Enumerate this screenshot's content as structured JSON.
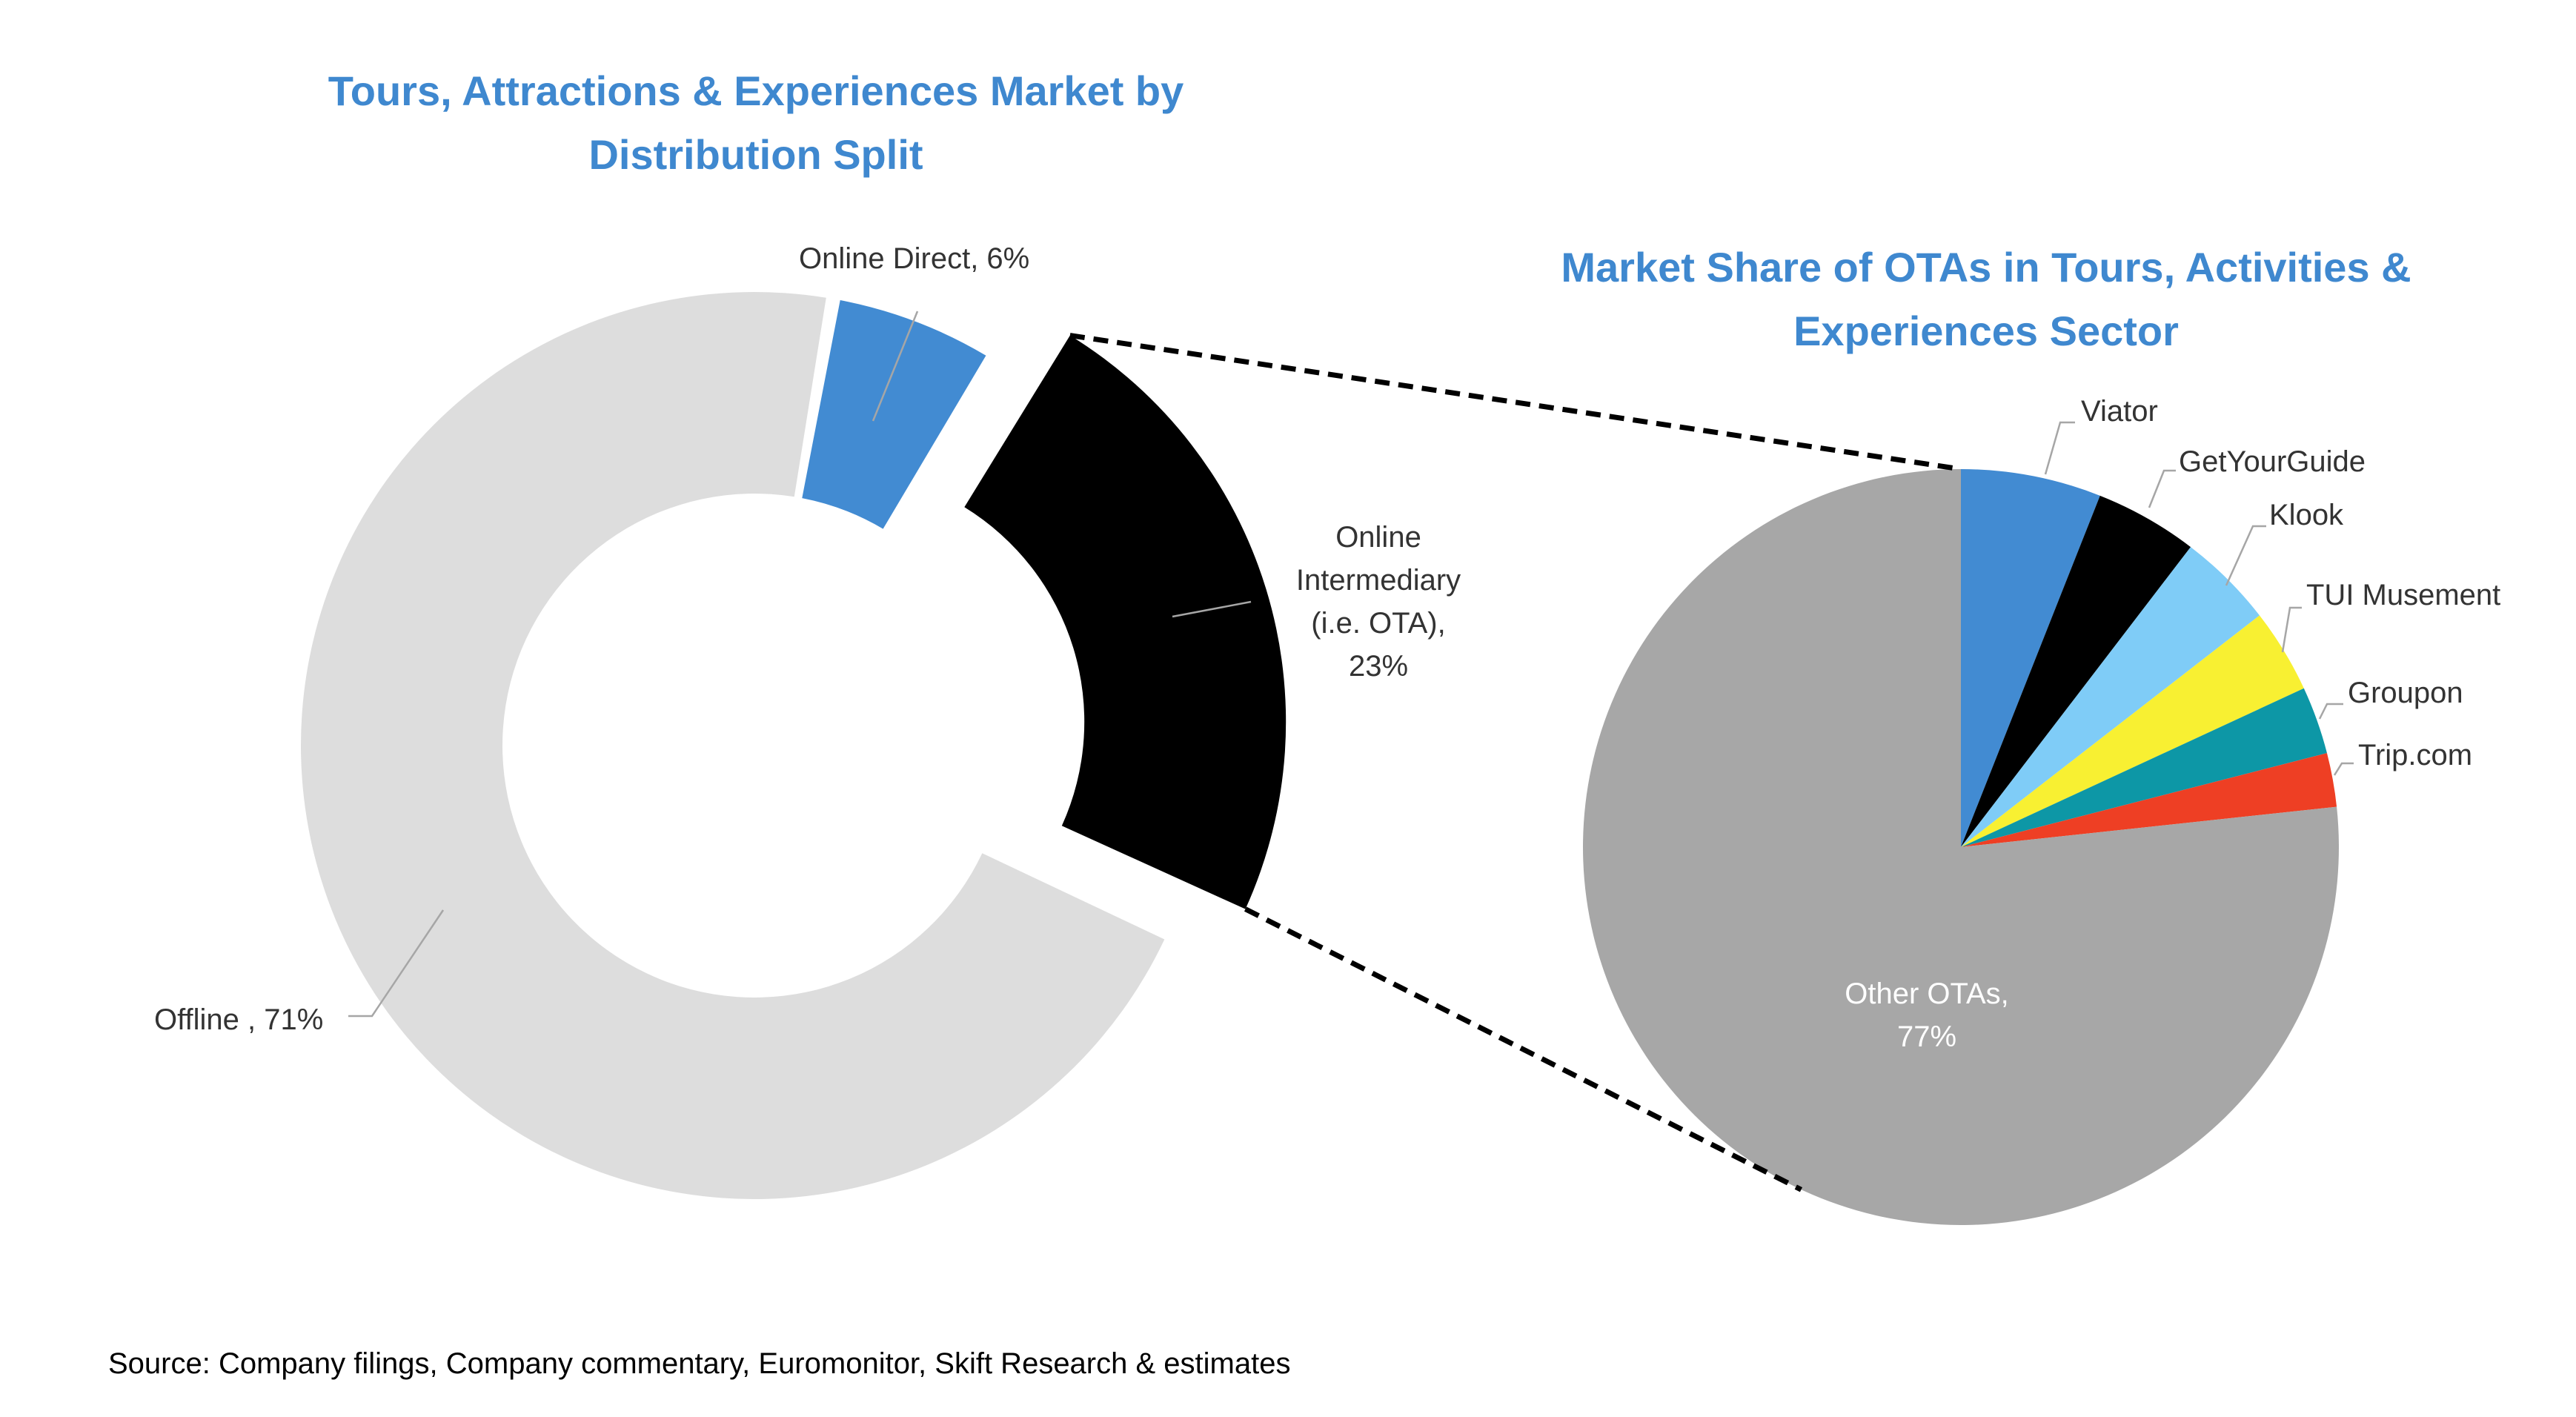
{
  "source": "Source: Company filings, Company commentary, Euromonitor, Skift Research & estimates",
  "chart_data": [
    {
      "type": "pie",
      "style": "donut",
      "title": "Tours, Attractions & Experiences Market by Distribution Split",
      "title_lines": [
        "Tours, Attractions & Experiences Market by",
        "Distribution Split"
      ],
      "slices": [
        {
          "name": "Online Direct",
          "value": 6,
          "color": "#428BD2",
          "label_lines": [
            "Online Direct, 6%"
          ]
        },
        {
          "name": "Online Intermediary (i.e. OTA)",
          "value": 23,
          "color": "#000000",
          "exploded": true,
          "label_lines": [
            "Online",
            "Intermediary",
            "(i.e. OTA),",
            "23%"
          ]
        },
        {
          "name": "Offline ",
          "value": 71,
          "color": "#DDDDDD",
          "label_lines": [
            "Offline , 71%"
          ]
        }
      ]
    },
    {
      "type": "pie",
      "title": "Market Share of OTAs in Tours, Activities & Experiences Sector",
      "title_lines": [
        "Market Share of OTAs in Tours, Activities &",
        "Experiences Sector"
      ],
      "slices": [
        {
          "name": "Viator",
          "value": 6.0,
          "color": "#428BD2",
          "label_lines": [
            "Viator"
          ]
        },
        {
          "name": "GetYourGuide",
          "value": 4.4,
          "color": "#000000",
          "label_lines": [
            "GetYourGuide"
          ]
        },
        {
          "name": "Klook",
          "value": 4.1,
          "color": "#7FCCF7",
          "label_lines": [
            "Klook"
          ]
        },
        {
          "name": "TUI Musement",
          "value": 3.6,
          "color": "#F8F032",
          "label_lines": [
            "TUI Musement"
          ]
        },
        {
          "name": "Groupon",
          "value": 2.9,
          "color": "#0D97A6",
          "label_lines": [
            "Groupon"
          ]
        },
        {
          "name": "Trip.com",
          "value": 2.3,
          "color": "#EE3F24",
          "label_lines": [
            "Trip.com"
          ]
        },
        {
          "name": "Other OTAs",
          "value": 76.7,
          "color": "#A7A7A7",
          "label_lines": [
            "Other OTAs,",
            "77%"
          ]
        }
      ]
    }
  ]
}
